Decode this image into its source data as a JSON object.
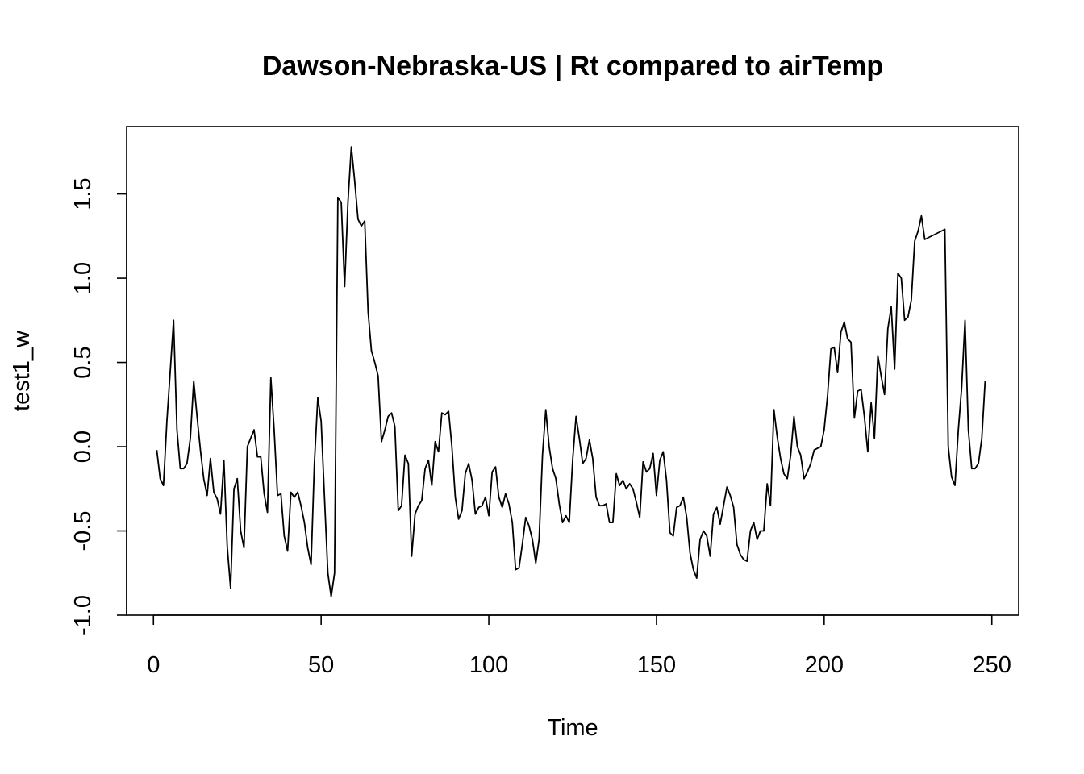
{
  "chart_data": {
    "type": "line",
    "title": "Dawson-Nebraska-US | Rt compared to airTemp",
    "xlabel": "Time",
    "ylabel": "test1_w",
    "xlim": [
      -8,
      258
    ],
    "ylim": [
      -1.0,
      1.9
    ],
    "xticks": [
      0,
      50,
      100,
      150,
      200,
      250
    ],
    "yticks": [
      -1.0,
      -0.5,
      0.0,
      0.5,
      1.0,
      1.5
    ],
    "xtick_labels": [
      "0",
      "50",
      "100",
      "150",
      "200",
      "250"
    ],
    "ytick_labels": [
      "-1.0",
      "-0.5",
      "0.0",
      "0.5",
      "1.0",
      "1.5"
    ],
    "grid": false,
    "line_color": "#000000",
    "series": [
      {
        "x": [
          1,
          2,
          3,
          4,
          5,
          6,
          7,
          8,
          9,
          10,
          11,
          12,
          13,
          14,
          15,
          16,
          17,
          18,
          19,
          20,
          21,
          22,
          23,
          24,
          25,
          26,
          27,
          28,
          29,
          30,
          31,
          32,
          33,
          34,
          35,
          36,
          37,
          38,
          39,
          40,
          41,
          42,
          43,
          44,
          45,
          46,
          47,
          48,
          49,
          50,
          51,
          52,
          53,
          54,
          55,
          56,
          57,
          58,
          59,
          60,
          61,
          62,
          63,
          64,
          65,
          66,
          67,
          68,
          69,
          70,
          71,
          72,
          73,
          74,
          75,
          76,
          77,
          78,
          79,
          80,
          81,
          82,
          83,
          84,
          85,
          86,
          87,
          88,
          89,
          90,
          91,
          92,
          93,
          94,
          95,
          96,
          97,
          98,
          99,
          100,
          101,
          102,
          103,
          104,
          105,
          106,
          107,
          108,
          109,
          110,
          111,
          112,
          113,
          114,
          115,
          116,
          117,
          118,
          119,
          120,
          121,
          122,
          123,
          124,
          125,
          126,
          127,
          128,
          129,
          130,
          131,
          132,
          133,
          134,
          135,
          136,
          137,
          138,
          139,
          140,
          141,
          142,
          143,
          144,
          145,
          146,
          147,
          148,
          149,
          150,
          151,
          152,
          153,
          154,
          155,
          156,
          157,
          158,
          159,
          160,
          161,
          162,
          163,
          164,
          165,
          166,
          167,
          168,
          169,
          170,
          171,
          172,
          173,
          174,
          175,
          176,
          177,
          178,
          179,
          180,
          181,
          182,
          183,
          184,
          185,
          186,
          187,
          188,
          189,
          190,
          191,
          192,
          193,
          194,
          195,
          196,
          197,
          198,
          199,
          200,
          201,
          202,
          203,
          204,
          205,
          206,
          207,
          208,
          209,
          210,
          211,
          212,
          213,
          214,
          215,
          216,
          217,
          218,
          219,
          220,
          221,
          222,
          223,
          224,
          225,
          226,
          227,
          228,
          229,
          230,
          236,
          237,
          238,
          239,
          240,
          241,
          242,
          243,
          244,
          245,
          246,
          247,
          248
        ],
        "values": [
          -0.02,
          -0.19,
          -0.23,
          0.15,
          0.45,
          0.75,
          0.1,
          -0.13,
          -0.13,
          -0.1,
          0.05,
          0.39,
          0.18,
          -0.02,
          -0.19,
          -0.29,
          -0.07,
          -0.27,
          -0.31,
          -0.4,
          -0.08,
          -0.59,
          -0.84,
          -0.25,
          -0.19,
          -0.5,
          -0.6,
          0.0,
          0.05,
          0.1,
          -0.06,
          -0.06,
          -0.28,
          -0.39,
          0.41,
          0.1,
          -0.29,
          -0.28,
          -0.53,
          -0.62,
          -0.27,
          -0.3,
          -0.27,
          -0.35,
          -0.45,
          -0.6,
          -0.7,
          -0.1,
          0.29,
          0.15,
          -0.3,
          -0.75,
          -0.89,
          -0.75,
          1.48,
          1.45,
          0.95,
          1.45,
          1.78,
          1.58,
          1.35,
          1.31,
          1.34,
          0.8,
          0.57,
          0.5,
          0.42,
          0.03,
          0.1,
          0.18,
          0.2,
          0.12,
          -0.38,
          -0.35,
          -0.05,
          -0.1,
          -0.65,
          -0.4,
          -0.35,
          -0.32,
          -0.13,
          -0.08,
          -0.23,
          0.03,
          -0.03,
          0.2,
          0.19,
          0.21,
          0.0,
          -0.3,
          -0.43,
          -0.38,
          -0.16,
          -0.1,
          -0.2,
          -0.4,
          -0.36,
          -0.35,
          -0.3,
          -0.41,
          -0.15,
          -0.12,
          -0.3,
          -0.36,
          -0.28,
          -0.34,
          -0.45,
          -0.73,
          -0.72,
          -0.58,
          -0.42,
          -0.47,
          -0.55,
          -0.69,
          -0.55,
          -0.05,
          0.22,
          0.0,
          -0.13,
          -0.19,
          -0.34,
          -0.45,
          -0.41,
          -0.45,
          -0.08,
          0.18,
          0.05,
          -0.1,
          -0.07,
          0.04,
          -0.07,
          -0.3,
          -0.35,
          -0.35,
          -0.34,
          -0.45,
          -0.45,
          -0.16,
          -0.23,
          -0.2,
          -0.25,
          -0.22,
          -0.25,
          -0.33,
          -0.42,
          -0.09,
          -0.15,
          -0.13,
          -0.04,
          -0.29,
          -0.08,
          -0.03,
          -0.2,
          -0.51,
          -0.53,
          -0.36,
          -0.35,
          -0.3,
          -0.42,
          -0.63,
          -0.73,
          -0.78,
          -0.55,
          -0.5,
          -0.53,
          -0.65,
          -0.4,
          -0.36,
          -0.46,
          -0.35,
          -0.24,
          -0.29,
          -0.36,
          -0.58,
          -0.64,
          -0.67,
          -0.68,
          -0.5,
          -0.45,
          -0.55,
          -0.5,
          -0.5,
          -0.22,
          -0.35,
          0.22,
          0.06,
          -0.07,
          -0.16,
          -0.19,
          -0.05,
          0.18,
          0.0,
          -0.05,
          -0.19,
          -0.15,
          -0.1,
          -0.02,
          -0.01,
          0.0,
          0.1,
          0.3,
          0.58,
          0.59,
          0.44,
          0.68,
          0.74,
          0.64,
          0.62,
          0.17,
          0.33,
          0.34,
          0.18,
          -0.03,
          0.26,
          0.05,
          0.54,
          0.42,
          0.31,
          0.7,
          0.83,
          0.46,
          1.03,
          1.0,
          0.75,
          0.77,
          0.87,
          1.22,
          1.28,
          1.37,
          1.23,
          1.29,
          0.0,
          -0.18,
          -0.23,
          0.1,
          0.35,
          0.75,
          0.1,
          -0.13,
          -0.13,
          -0.1,
          0.05,
          0.39
        ]
      }
    ]
  }
}
